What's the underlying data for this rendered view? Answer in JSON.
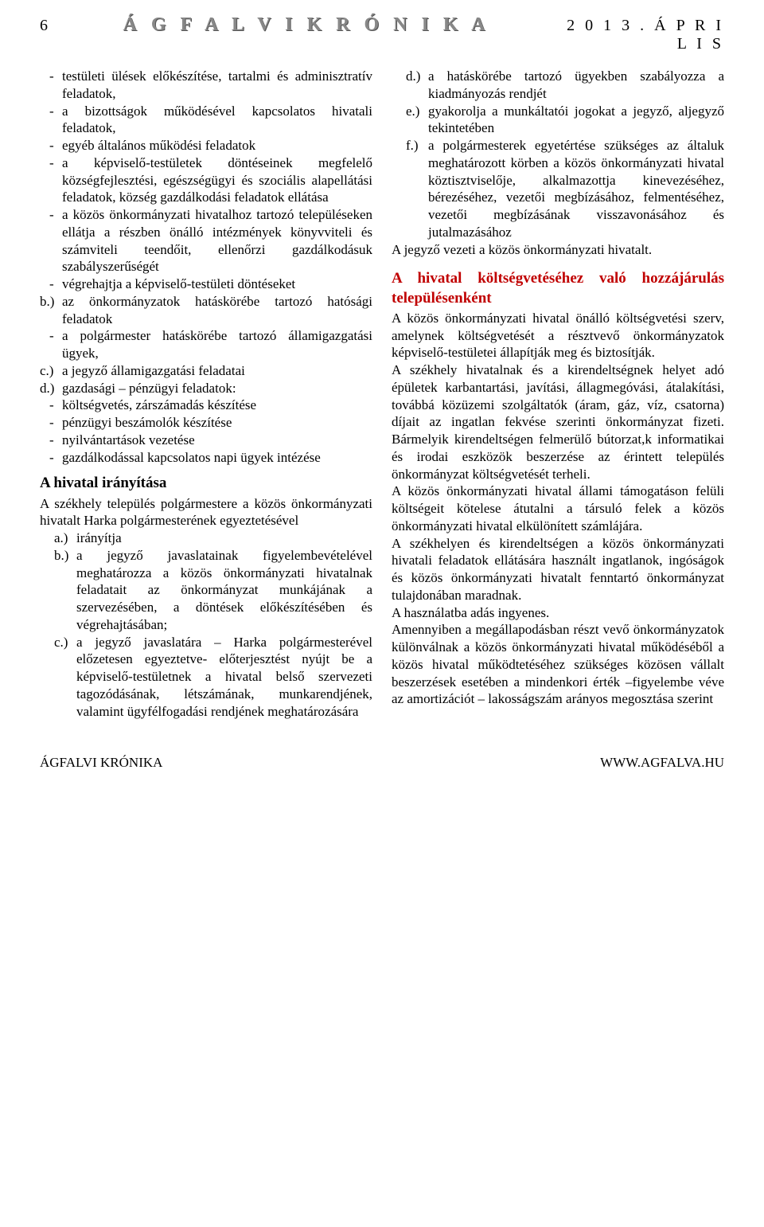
{
  "header": {
    "page_number": "6",
    "masthead": "Á G F A L V I   K R Ó N I K A",
    "date": "2 0 1 3 .   Á P R I L I S"
  },
  "left": {
    "dash1": [
      "testületi ülések előkészítése, tartalmi és adminisztratív feladatok,",
      "a bizottságok működésével kapcsolatos hivatali feladatok,",
      "egyéb általános működési feladatok",
      "a képviselő-testületek döntéseinek megfelelő községfejlesztési, egészségügyi és szociális alapellátási feladatok, község gazdálkodási feladatok ellátása",
      "a közös önkormányzati hivatalhoz tartozó településeken ellátja a részben önálló intézmények könyvviteli és számviteli teendőit, ellenőrzi gazdálkodásuk szabályszerűségét",
      "végrehajtja a képviselő-testületi döntéseket"
    ],
    "b_label": "b.)",
    "b_text": "az önkormányzatok hatáskörébe tartozó hatósági feladatok",
    "b_dash": [
      "a polgármester hatáskörébe tartozó államigazgatási ügyek,"
    ],
    "c_label": "c.)",
    "c_text": "a jegyző államigazgatási feladatai",
    "d_label": "d.)",
    "d_text": "gazdasági – pénzügyi feladatok:",
    "d_dash": [
      "költségvetés, zárszámadás készítése",
      "pénzügyi beszámolók készítése",
      "nyilvántartások vezetése",
      "gazdálkodással kapcsolatos napi ügyek intézése"
    ],
    "h1": "A hivatal irányítása",
    "p1": "A székhely település polgármestere a közös önkormányzati hivatalt Harka polgármesterének egyeztetésével",
    "sub": [
      {
        "l": "a.)",
        "t": "irányítja"
      },
      {
        "l": "b.)",
        "t": "a jegyző javaslatainak figyelembevételével meghatározza a közös önkormányzati hivatalnak feladatait az önkormányzat munkájának a szervezésében, a döntések előkészítésében és végrehajtásában;"
      },
      {
        "l": "c.)",
        "t": "a jegyző javaslatára – Harka polgármesterével előzetesen egyeztetve- előterjesztést nyújt be a képviselő-testületnek a hivatal belső szervezeti tagozódásának, létszámának, munkarendjének, valamint ügyfélfogadási rendjének meghatározására"
      }
    ]
  },
  "right": {
    "sub": [
      {
        "l": "d.)",
        "t": "a hatáskörébe tartozó ügyekben szabályozza a kiadmányozás rendjét"
      },
      {
        "l": "e.)",
        "t": "gyakorolja a munkáltatói jogokat a jegyző, aljegyző tekintetében"
      },
      {
        "l": "f.)",
        "t": "a polgármesterek egyetértése szükséges az általuk meghatározott körben a közös önkormányzati hivatal köztisztviselője, alkalmazottja kinevezéséhez, bérezéséhez, vezetői megbízásához, felmentéséhez, vezetői megbízásának visszavonásához és jutalmazásához"
      }
    ],
    "p1": "A jegyző vezeti a közös önkormányzati hivatalt.",
    "h_red": "A hivatal költségvetéséhez való hozzájárulás településenként",
    "p2": "A közös önkormányzati hivatal önálló költségvetési szerv, amelynek költségvetését a résztvevő önkormányzatok képviselő-testületei állapítják meg és biztosítják.",
    "p3": "A székhely hivatalnak és a kirendeltségnek helyet adó épületek karbantartási, javítási, állagmegóvási, átalakítási, továbbá közüzemi szolgáltatók (áram, gáz, víz, csatorna) díjait az ingatlan fekvése szerinti önkormányzat fizeti. Bármelyik kirendeltségen felmerülő bútorzat,k informatikai és irodai eszközök beszerzése az érintett település önkormányzat költségvetését terheli.",
    "p4": "A közös önkormányzati hivatal állami támogatáson felüli költségeit kötelese átutalni a társuló felek a közös önkormányzati hivatal elkülönített számlájára.",
    "p5": "A székhelyen és kirendeltségen a közös önkormányzati hivatali feladatok ellátására használt ingatlanok, ingóságok és közös önkormányzati hivatalt fenntartó önkormányzat tulajdonában maradnak.",
    "p6": "A használatba adás ingyenes.",
    "p7": "Amennyiben a megállapodásban részt vevő önkormányzatok különválnak a közös önkormányzati hivatal működéséből a közös hivatal működtetéséhez szükséges közösen vállalt beszerzések esetében a mindenkori érték –figyelembe véve az amortizációt – lakosságszám arányos megosztása szerint"
  },
  "footer": {
    "left": "ÁGFALVI KRÓNIKA",
    "right": "WWW.AGFALVA.HU"
  }
}
